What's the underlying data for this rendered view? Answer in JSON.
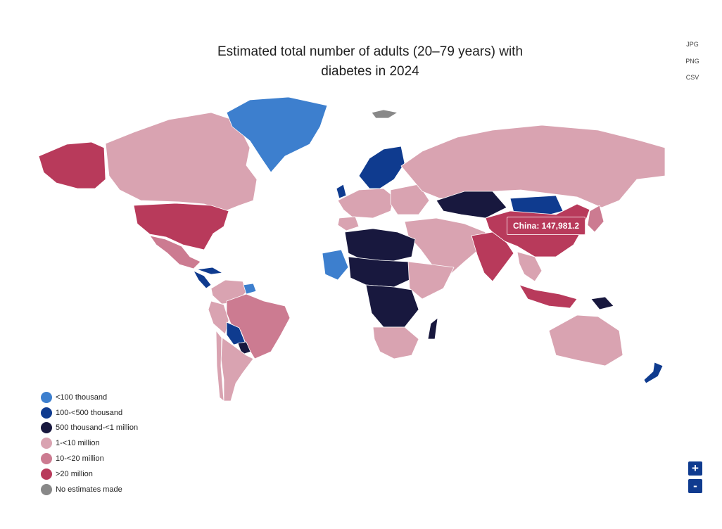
{
  "title_line1": "Estimated total number of adults (20–79 years) with",
  "title_line2": "diabetes in 2024",
  "export": {
    "jpg": "JPG",
    "png": "PNG",
    "csv": "CSV"
  },
  "tooltip": "China: 147,981.2",
  "legend": [
    {
      "label": "<100 thousand",
      "color": "#3d7fce"
    },
    {
      "label": "100-<500 thousand",
      "color": "#0f3b8f"
    },
    {
      "label": "500 thousand-<1 million",
      "color": "#18183e"
    },
    {
      "label": "1-<10 million",
      "color": "#d9a3b1"
    },
    {
      "label": "10-<20 million",
      "color": "#cc7b91"
    },
    {
      "label": ">20 million",
      "color": "#b83a5b"
    },
    {
      "label": "No estimates made",
      "color": "#888888"
    }
  ],
  "zoom": {
    "in": "+",
    "out": "-"
  }
}
